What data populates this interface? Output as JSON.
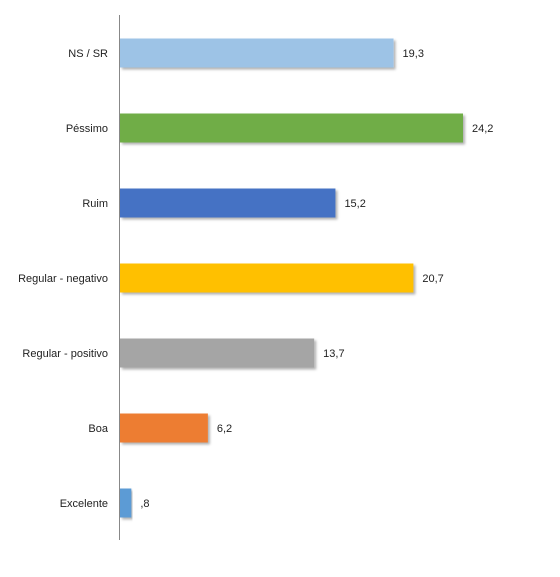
{
  "chart_data": {
    "type": "hbar",
    "categories": [
      "NS / SR",
      "Péssimo",
      "Ruim",
      "Regular - negativo",
      "Regular - positivo",
      "Boa",
      "Excelente"
    ],
    "values": [
      19.3,
      24.2,
      15.2,
      20.7,
      13.7,
      6.2,
      0.8
    ],
    "value_labels": [
      "19,3",
      "24,2",
      "15,2",
      "20,7",
      "13,7",
      "6,2",
      ",8"
    ],
    "colors": [
      "#9dc3e6",
      "#70ad47",
      "#4472c4",
      "#ffc000",
      "#a5a5a5",
      "#ed7d31",
      "#5b9bd5"
    ]
  }
}
